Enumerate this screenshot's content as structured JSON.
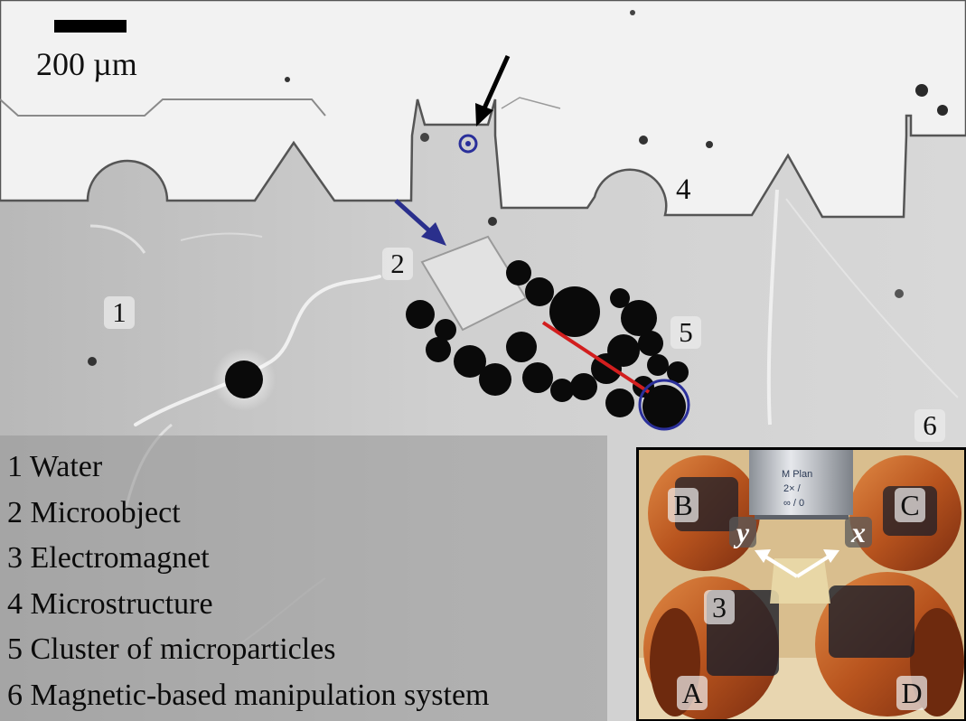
{
  "scale": {
    "label": "200 µm"
  },
  "markers": {
    "m1": "1",
    "m2": "2",
    "m4": "4",
    "m5": "5",
    "m6": "6"
  },
  "legend": {
    "items": [
      "1 Water",
      "2 Microobject",
      "3 Electromagnet",
      "4 Microstructure",
      "5 Cluster of microparticles",
      "6 Magnetic-based manipulation system"
    ]
  },
  "inset": {
    "coils": {
      "a": "A",
      "b": "B",
      "c": "C",
      "d": "D"
    },
    "electromagnet_marker": "3",
    "axes": {
      "x": "x",
      "y": "y"
    },
    "objective_text": [
      "M Plan",
      "2× /",
      "∞ / 0"
    ]
  },
  "colors": {
    "arrow_black": "#000000",
    "arrow_blue": "#2a2f8c",
    "target_circle": "#2a2f9a",
    "trajectory_line": "#d21e1e",
    "coil_copper": "#c9652a",
    "coil_tape": "#1c1f2a"
  }
}
